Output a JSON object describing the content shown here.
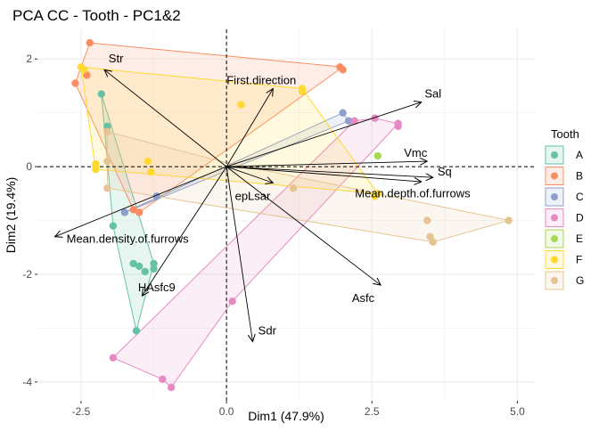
{
  "chart_data": {
    "type": "scatter",
    "title": "PCA CC - Tooth - PC1&2",
    "xlabel": "Dim1 (47.9%)",
    "ylabel": "Dim2 (19.4%)",
    "xlim": [
      -3.25,
      5.3
    ],
    "ylim": [
      -4.35,
      2.55
    ],
    "xticks": [
      -2.5,
      0.0,
      2.5,
      5.0
    ],
    "xtick_labels": [
      "-2.5",
      "0.0",
      "2.5",
      "5.0"
    ],
    "yticks": [
      -4,
      -2,
      0,
      2
    ],
    "ytick_labels": [
      "-4",
      "-2",
      "0",
      "2"
    ],
    "grid": true,
    "legend": {
      "title": "Tooth",
      "position": "right"
    },
    "series": [
      {
        "name": "A",
        "color": "#66c2a5",
        "points": [
          [
            -2.15,
            1.35
          ],
          [
            -2.05,
            0.75
          ],
          [
            -1.95,
            -1.1
          ],
          [
            -1.6,
            -1.8
          ],
          [
            -1.5,
            -1.85
          ],
          [
            -1.4,
            -1.95
          ],
          [
            -1.25,
            -1.8
          ],
          [
            -1.55,
            -3.05
          ],
          [
            -1.25,
            -1.9
          ]
        ],
        "hull": [
          [
            -2.15,
            1.35
          ],
          [
            -1.25,
            -1.8
          ],
          [
            -1.55,
            -3.05
          ],
          [
            -1.95,
            -1.1
          ]
        ]
      },
      {
        "name": "B",
        "color": "#fc8d62",
        "points": [
          [
            -2.6,
            1.55
          ],
          [
            -2.4,
            1.7
          ],
          [
            -2.35,
            2.3
          ],
          [
            1.95,
            1.85
          ],
          [
            2.0,
            1.8
          ],
          [
            -1.6,
            -0.8
          ],
          [
            -1.5,
            -0.85
          ]
        ],
        "hull": [
          [
            -2.6,
            1.55
          ],
          [
            -2.35,
            2.3
          ],
          [
            2.0,
            1.85
          ],
          [
            -1.5,
            -0.85
          ],
          [
            -1.6,
            -0.8
          ]
        ]
      },
      {
        "name": "C",
        "color": "#8da0cb",
        "points": [
          [
            2.0,
            1.0
          ],
          [
            2.1,
            0.85
          ],
          [
            -1.75,
            -0.85
          ],
          [
            -1.2,
            -0.55
          ]
        ],
        "hull": [
          [
            -1.75,
            -0.85
          ],
          [
            2.0,
            1.0
          ],
          [
            2.1,
            0.85
          ]
        ]
      },
      {
        "name": "D",
        "color": "#e78ac3",
        "points": [
          [
            2.2,
            0.85
          ],
          [
            2.55,
            0.9
          ],
          [
            2.95,
            0.8
          ],
          [
            2.95,
            0.75
          ],
          [
            0.1,
            -2.5
          ],
          [
            -1.95,
            -3.55
          ],
          [
            -1.1,
            -3.95
          ],
          [
            -0.95,
            -4.1
          ]
        ],
        "hull": [
          [
            -1.95,
            -3.55
          ],
          [
            2.2,
            0.85
          ],
          [
            2.55,
            0.9
          ],
          [
            2.95,
            0.8
          ],
          [
            0.1,
            -2.5
          ],
          [
            -0.95,
            -4.1
          ],
          [
            -1.1,
            -3.95
          ]
        ]
      },
      {
        "name": "E",
        "color": "#a6d854",
        "points": [
          [
            2.6,
            0.2
          ]
        ],
        "hull": []
      },
      {
        "name": "F",
        "color": "#ffd92f",
        "points": [
          [
            -2.5,
            1.85
          ],
          [
            -2.45,
            1.8
          ],
          [
            1.3,
            1.45
          ],
          [
            1.3,
            1.4
          ],
          [
            0.25,
            1.15
          ],
          [
            -2.25,
            0.05
          ],
          [
            -2.25,
            -0.05
          ],
          [
            -1.35,
            0.1
          ],
          [
            -1.3,
            -0.1
          ],
          [
            2.55,
            -0.55
          ],
          [
            2.6,
            -0.5
          ]
        ],
        "hull": [
          [
            -2.5,
            1.85
          ],
          [
            1.3,
            1.45
          ],
          [
            2.6,
            -0.5
          ],
          [
            -2.25,
            -0.05
          ]
        ]
      },
      {
        "name": "G",
        "color": "#e5c494",
        "points": [
          [
            -2.05,
            0.65
          ],
          [
            -2.05,
            0.1
          ],
          [
            -2.05,
            -0.4
          ],
          [
            1.15,
            -0.4
          ],
          [
            3.45,
            -1.0
          ],
          [
            3.5,
            -1.3
          ],
          [
            3.55,
            -1.4
          ],
          [
            4.85,
            -1.0
          ]
        ],
        "hull": [
          [
            -2.05,
            0.65
          ],
          [
            -0.1,
            0.1
          ],
          [
            4.85,
            -1.0
          ],
          [
            3.55,
            -1.4
          ],
          [
            -2.05,
            -0.4
          ]
        ]
      }
    ],
    "variables": [
      {
        "name": "Str",
        "x": -2.1,
        "y": 1.8,
        "label_x": -1.9,
        "label_y": 2.0
      },
      {
        "name": "First.direction",
        "x": 0.8,
        "y": 1.45,
        "label_x": 0.6,
        "label_y": 1.6
      },
      {
        "name": "Sal",
        "x": 3.35,
        "y": 1.2,
        "label_x": 3.55,
        "label_y": 1.35
      },
      {
        "name": "Vmc",
        "x": 3.45,
        "y": 0.1,
        "label_x": 3.25,
        "label_y": 0.25
      },
      {
        "name": "Sq",
        "x": 3.55,
        "y": -0.2,
        "label_x": 3.75,
        "label_y": -0.1
      },
      {
        "name": "Mean.depth.of.furrows",
        "x": 3.35,
        "y": -0.28,
        "label_x": 3.2,
        "label_y": -0.5
      },
      {
        "name": "epLsar",
        "x": 0.8,
        "y": -0.3,
        "label_x": 0.45,
        "label_y": -0.55
      },
      {
        "name": "Mean.density.of.furrows",
        "x": -2.95,
        "y": -1.3,
        "label_x": -1.7,
        "label_y": -1.35
      },
      {
        "name": "Asfc",
        "x": 2.65,
        "y": -2.2,
        "label_x": 2.35,
        "label_y": -2.45
      },
      {
        "name": "HAsfc9",
        "x": -1.45,
        "y": -2.4,
        "label_x": -1.2,
        "label_y": -2.25
      },
      {
        "name": "Sdr",
        "x": 0.45,
        "y": -3.25,
        "label_x": 0.7,
        "label_y": -3.05
      }
    ]
  }
}
